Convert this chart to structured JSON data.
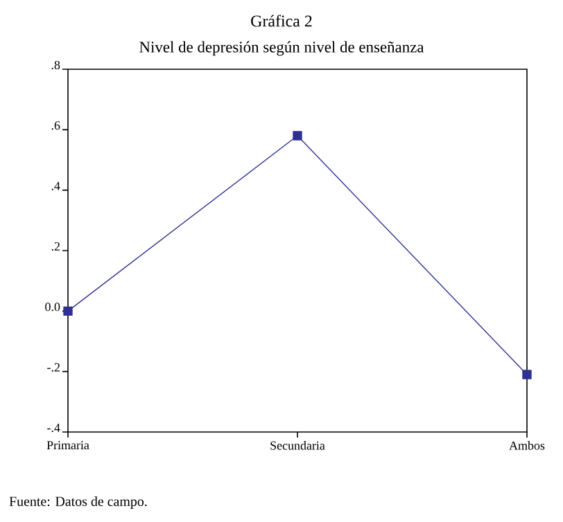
{
  "chart_data": {
    "type": "line",
    "title": "Gráfica 2",
    "subtitle": "Nivel de depresión según nivel de enseñanza",
    "categories": [
      "Primaria",
      "Secundaria",
      "Ambos"
    ],
    "series": [
      {
        "color": "#2e3192",
        "values": [
          0.0,
          0.58,
          -0.21
        ]
      }
    ],
    "ylim": [
      -0.4,
      0.8
    ],
    "yticks": [
      {
        "value": -0.4,
        "label": "-.4"
      },
      {
        "value": -0.2,
        "label": "-.2"
      },
      {
        "value": 0.0,
        "label": "0.0"
      },
      {
        "value": 0.2,
        "label": ".2"
      },
      {
        "value": 0.4,
        "label": ".4"
      },
      {
        "value": 0.6,
        "label": ".6"
      },
      {
        "value": 0.8,
        "label": ".8"
      }
    ],
    "marker": "square",
    "line_style": "solid",
    "grid": false,
    "annotations": [
      "Fuente: Datos de campo."
    ]
  }
}
